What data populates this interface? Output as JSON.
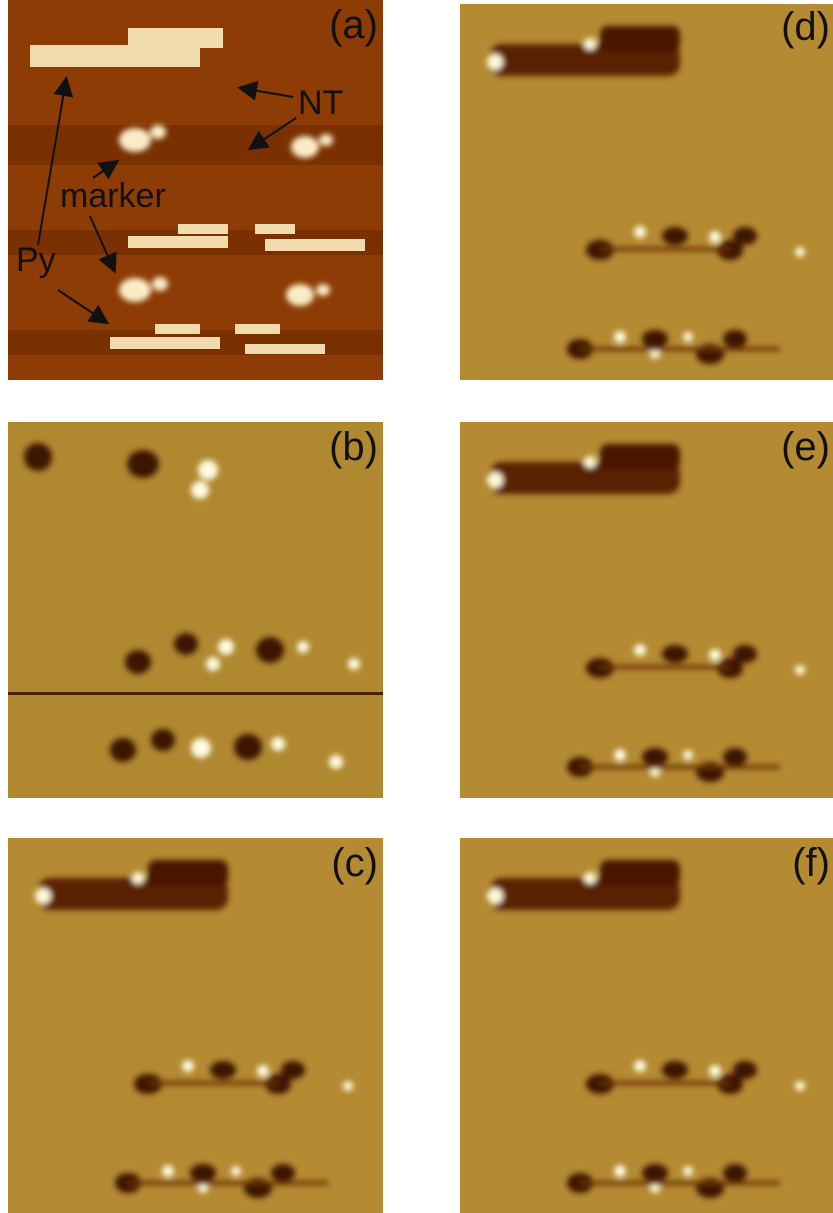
{
  "panels": [
    {
      "label": "(a)"
    },
    {
      "label": "(b)"
    },
    {
      "label": "(c)"
    },
    {
      "label": "(d)"
    },
    {
      "label": "(e)"
    },
    {
      "label": "(f)"
    }
  ],
  "annotations": {
    "nt": "NT",
    "marker": "marker",
    "py": "Py"
  }
}
